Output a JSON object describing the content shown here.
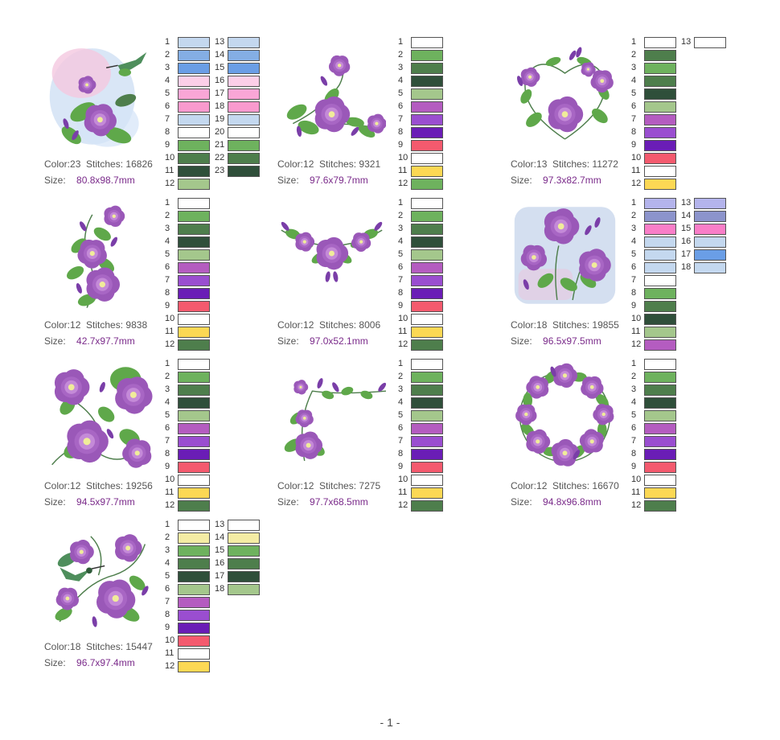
{
  "labels": {
    "color": "Color:",
    "stitches": "Stitches:",
    "size": "Size:"
  },
  "page_number": "- 1 -",
  "designs": [
    {
      "color_count": "23",
      "stitches": "16826",
      "size": "80.8x98.7mm",
      "thumb": "hummingbird",
      "swatches": [
        "#c4d8ef",
        "#84aee4",
        "#6a9ee6",
        "#fccfe8",
        "#f9a6d6",
        "#f99ace",
        "#c4d8ef",
        "#ffffff",
        "#6eb25e",
        "#4e7e4c",
        "#2f4f3a",
        "#a4c78c",
        "#c4d8ef",
        "#84aee4",
        "#6a9ee6",
        "#fccfe8",
        "#f9a6d6",
        "#f99ace",
        "#c4d8ef",
        "#ffffff",
        "#6eb25e",
        "#4e7e4c",
        "#2f4f3a"
      ]
    },
    {
      "color_count": "12",
      "stitches": "9321",
      "size": "97.6x79.7mm",
      "thumb": "corner",
      "swatches": [
        "#ffffff",
        "#6eb25e",
        "#4e7e4c",
        "#2f4f3a",
        "#a4c78c",
        "#b45cc0",
        "#9a4ed0",
        "#6a1db6",
        "#f45a6e",
        "#ffffff",
        "#fcd854",
        "#6eb25e"
      ]
    },
    {
      "color_count": "13",
      "stitches": "11272",
      "size": "97.3x82.7mm",
      "thumb": "heart",
      "swatches": [
        "#ffffff",
        "#4e7e4c",
        "#6eb25e",
        "#4e7e4c",
        "#2f4f3a",
        "#a4c78c",
        "#b45cc0",
        "#9a4ed0",
        "#6a1db6",
        "#f45a6e",
        "#ffffff",
        "#fcd854",
        "#ffffff"
      ]
    },
    {
      "color_count": "12",
      "stitches": "9838",
      "size": "42.7x97.7mm",
      "thumb": "vertical",
      "swatches": [
        "#ffffff",
        "#6eb25e",
        "#4e7e4c",
        "#2f4f3a",
        "#a4c78c",
        "#b45cc0",
        "#9a4ed0",
        "#6a1db6",
        "#f45a6e",
        "#ffffff",
        "#fcd854",
        "#4e7e4c"
      ]
    },
    {
      "color_count": "12",
      "stitches": "8006",
      "size": "97.0x52.1mm",
      "thumb": "swag",
      "swatches": [
        "#ffffff",
        "#6eb25e",
        "#4e7e4c",
        "#2f4f3a",
        "#a4c78c",
        "#b45cc0",
        "#9a4ed0",
        "#6a1db6",
        "#f45a6e",
        "#ffffff",
        "#fcd854",
        "#4e7e4c"
      ]
    },
    {
      "color_count": "18",
      "stitches": "19855",
      "size": "96.5x97.5mm",
      "thumb": "blueblock",
      "swatches": [
        "#b4b4ec",
        "#8c94cc",
        "#f97ec8",
        "#c4d8ef",
        "#c4d8ef",
        "#c4d8ef",
        "#ffffff",
        "#6eb25e",
        "#4e7e4c",
        "#2f4f3a",
        "#a4c78c",
        "#b45cc0",
        "#b4b4ec",
        "#8c94cc",
        "#f97ec8",
        "#c4d8ef",
        "#6a9ee6",
        "#c4d8ef"
      ]
    },
    {
      "color_count": "12",
      "stitches": "19256",
      "size": "94.5x97.7mm",
      "thumb": "square",
      "swatches": [
        "#ffffff",
        "#6eb25e",
        "#4e7e4c",
        "#2f4f3a",
        "#a4c78c",
        "#b45cc0",
        "#9a4ed0",
        "#6a1db6",
        "#f45a6e",
        "#ffffff",
        "#fcd854",
        "#4e7e4c"
      ]
    },
    {
      "color_count": "12",
      "stitches": "7275",
      "size": "97.7x68.5mm",
      "thumb": "lcorner",
      "swatches": [
        "#ffffff",
        "#6eb25e",
        "#4e7e4c",
        "#2f4f3a",
        "#a4c78c",
        "#b45cc0",
        "#9a4ed0",
        "#6a1db6",
        "#f45a6e",
        "#ffffff",
        "#fcd854",
        "#4e7e4c"
      ]
    },
    {
      "color_count": "12",
      "stitches": "16670",
      "size": "94.8x96.8mm",
      "thumb": "wreath",
      "swatches": [
        "#ffffff",
        "#6eb25e",
        "#4e7e4c",
        "#2f4f3a",
        "#a4c78c",
        "#b45cc0",
        "#9a4ed0",
        "#6a1db6",
        "#f45a6e",
        "#ffffff",
        "#fcd854",
        "#4e7e4c"
      ]
    },
    {
      "color_count": "18",
      "stitches": "15447",
      "size": "96.7x97.4mm",
      "thumb": "hummingbird2",
      "swatches": [
        "#ffffff",
        "#f4eca4",
        "#6eb25e",
        "#4e7e4c",
        "#2f4f3a",
        "#a4c78c",
        "#b45cc0",
        "#9a4ed0",
        "#6a1db6",
        "#f45a6e",
        "#ffffff",
        "#fcd854",
        "#ffffff",
        "#f4eca4",
        "#6eb25e",
        "#4e7e4c",
        "#2f4f3a",
        "#a4c78c"
      ]
    }
  ]
}
